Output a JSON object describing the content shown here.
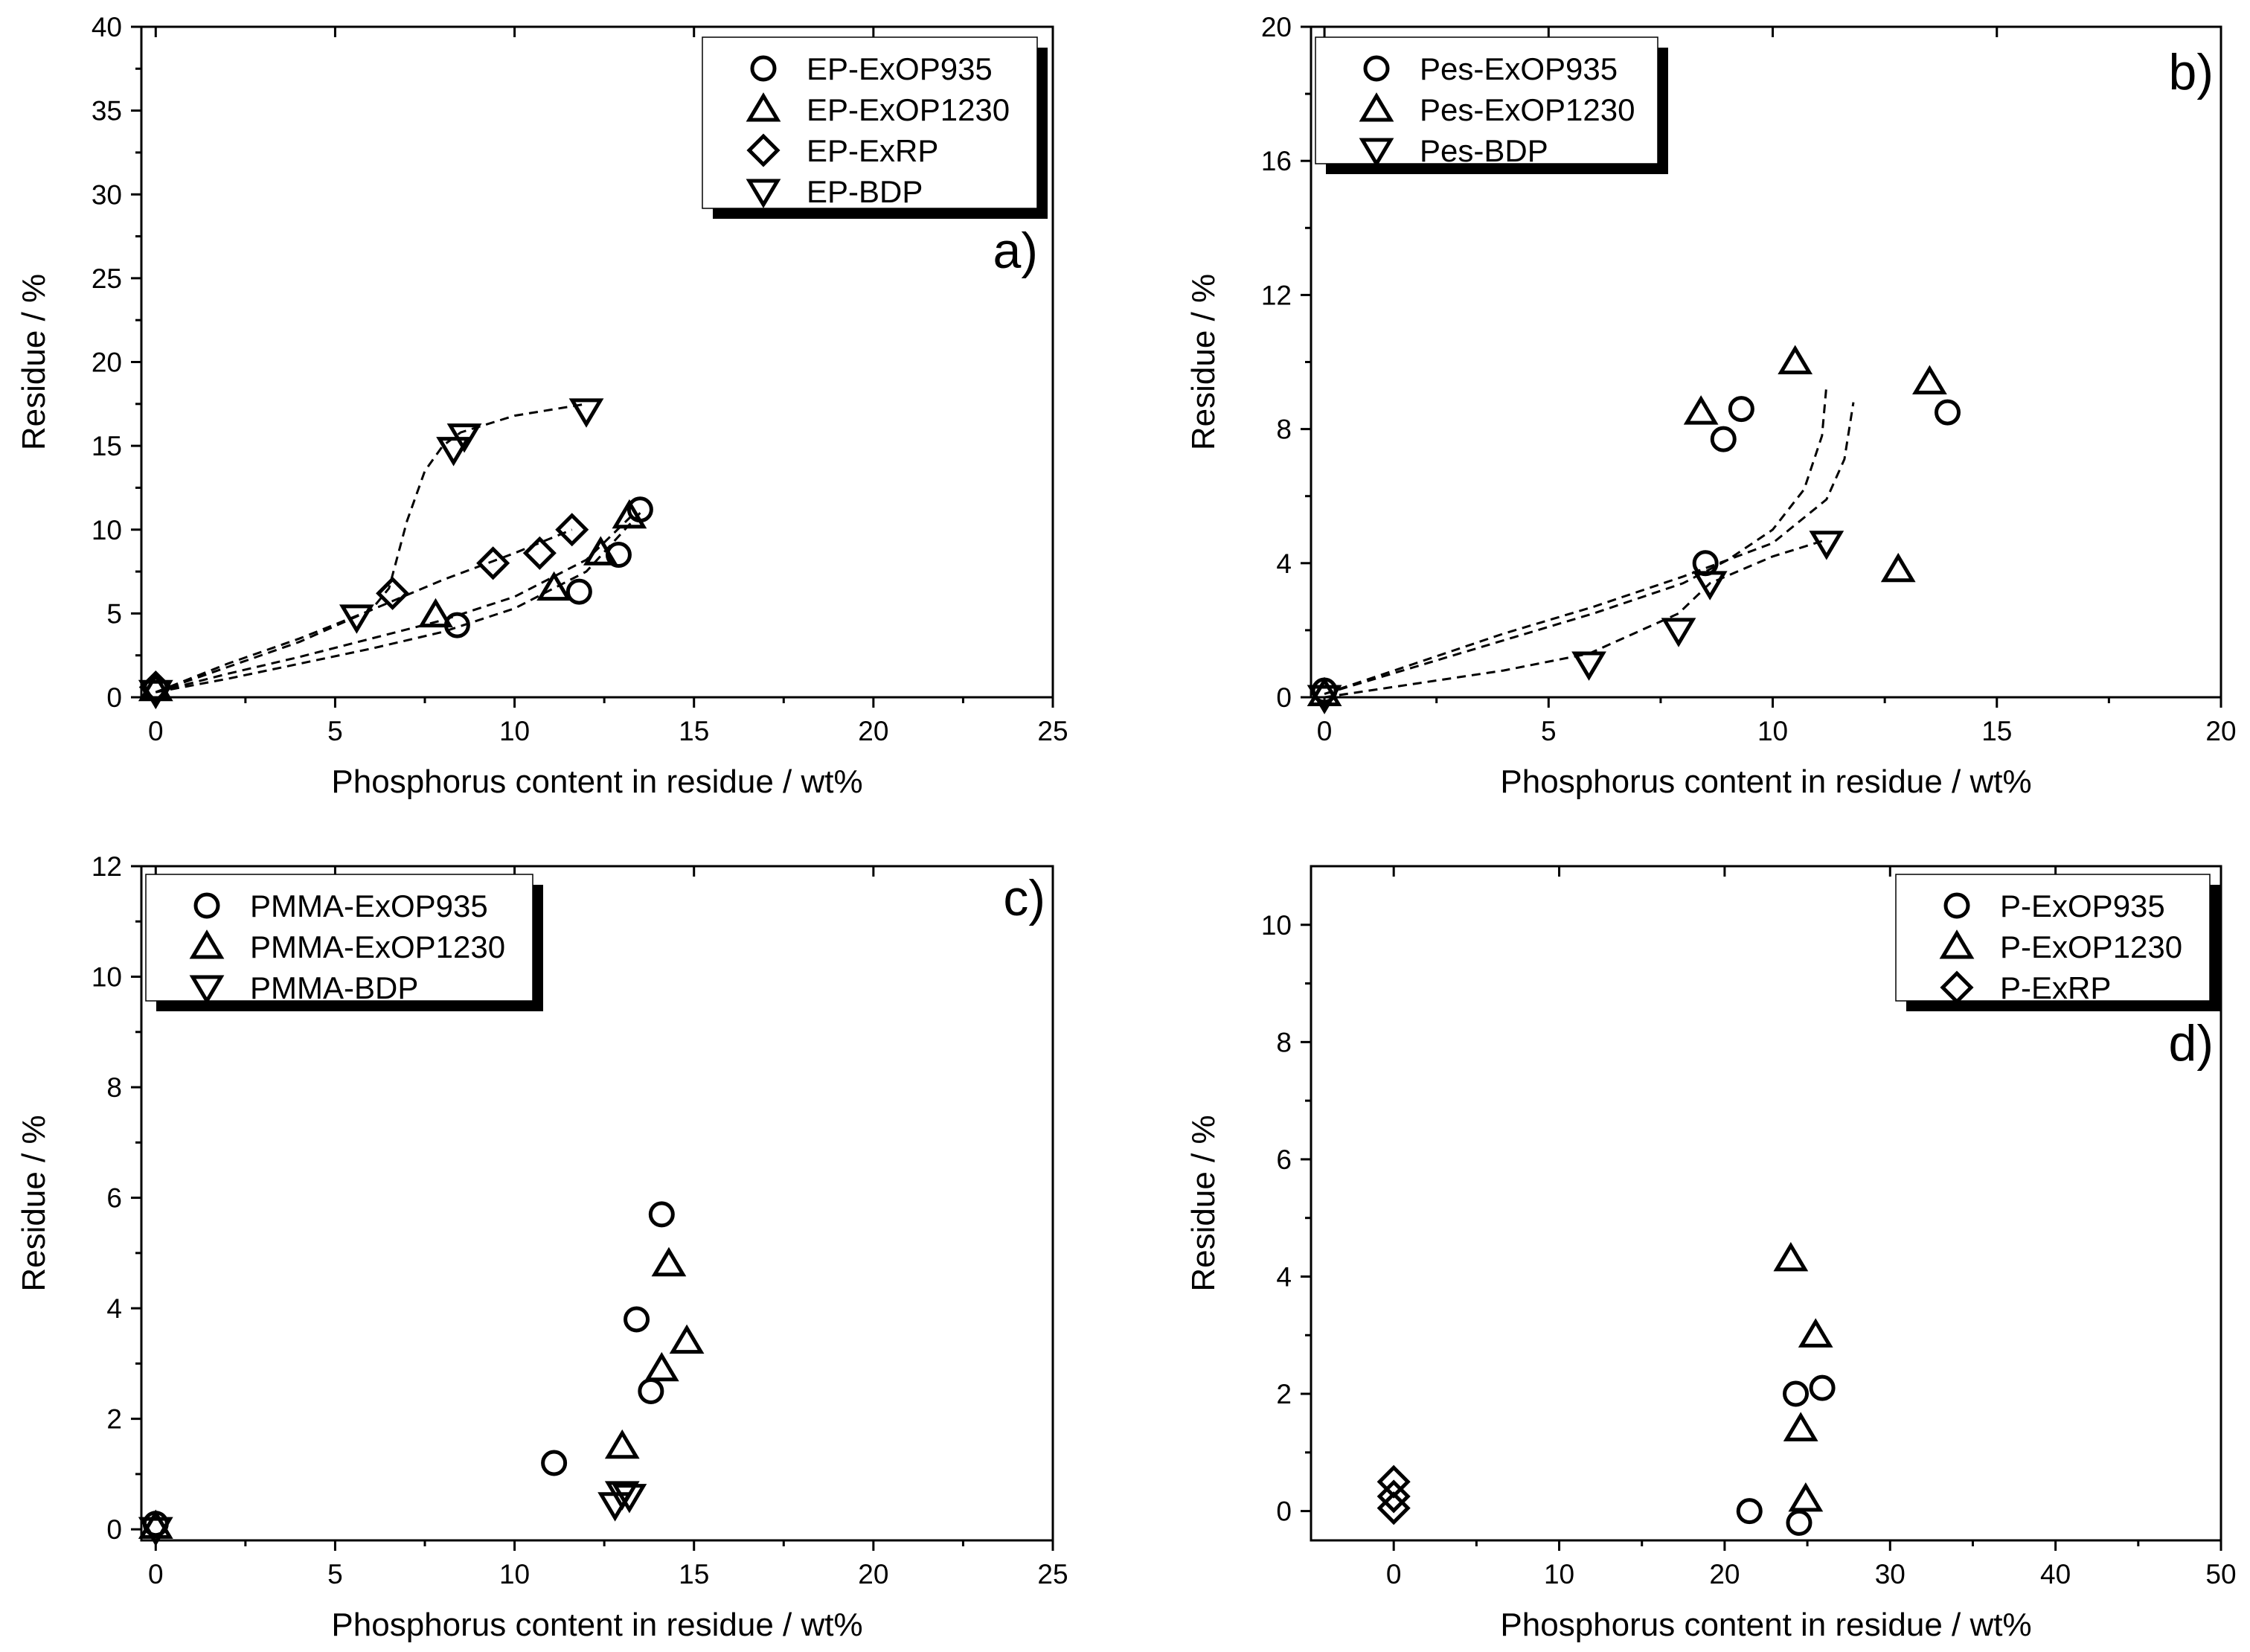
{
  "chart_data": [
    {
      "panel": "a)",
      "type": "scatter",
      "xlabel": "Phosphorus content in residue  /  wt%",
      "ylabel": "Residue  /  %",
      "xlim": [
        -0.4,
        25
      ],
      "ylim": [
        0,
        40
      ],
      "xticks": [
        0,
        5,
        10,
        15,
        20,
        25
      ],
      "yticks": [
        0,
        5,
        10,
        15,
        20,
        25,
        30,
        35,
        40
      ],
      "legend_position": "top-right",
      "series": [
        {
          "name": "EP-ExOP935",
          "marker": "circle",
          "x": [
            0,
            8.4,
            11.8,
            12.9,
            13.5
          ],
          "y": [
            0.5,
            4.3,
            6.3,
            8.5,
            11.2
          ]
        },
        {
          "name": "EP-ExOP1230",
          "marker": "triangle-up",
          "x": [
            0,
            7.8,
            11.1,
            12.4,
            13.2
          ],
          "y": [
            0.5,
            4.9,
            6.5,
            8.6,
            10.8
          ]
        },
        {
          "name": "EP-ExRP",
          "marker": "diamond",
          "x": [
            0,
            6.6,
            9.4,
            10.7,
            11.6
          ],
          "y": [
            0.6,
            6.2,
            8.0,
            8.6,
            10.0
          ]
        },
        {
          "name": "EP-BDP",
          "marker": "triangle-down",
          "x": [
            0,
            5.6,
            8.3,
            8.6,
            12.0
          ],
          "y": [
            0.3,
            4.8,
            14.8,
            15.6,
            17.1
          ]
        }
      ],
      "fit_curves": [
        {
          "x": [
            0,
            2,
            4,
            6,
            6.5,
            7,
            7.5,
            8,
            8.5,
            10,
            12
          ],
          "y": [
            0.3,
            1.8,
            3.3,
            5.2,
            6.5,
            10.5,
            13.5,
            15.0,
            15.8,
            16.8,
            17.5
          ]
        },
        {
          "x": [
            0,
            2,
            4,
            6,
            8,
            10,
            11.6
          ],
          "y": [
            0.3,
            2.0,
            3.5,
            5.2,
            7.0,
            8.6,
            10.0
          ]
        },
        {
          "x": [
            0,
            2,
            4,
            6,
            8,
            10,
            12,
            13.3
          ],
          "y": [
            0.3,
            1.4,
            2.4,
            3.5,
            4.6,
            6.0,
            8.2,
            10.9
          ]
        },
        {
          "x": [
            0,
            2,
            4,
            6,
            8,
            10,
            12,
            13.5
          ],
          "y": [
            0.3,
            1.1,
            2.0,
            2.9,
            3.9,
            5.3,
            7.5,
            11.0
          ]
        }
      ]
    },
    {
      "panel": "b)",
      "type": "scatter",
      "xlabel": "Phosphorus content in residue  /  wt%",
      "ylabel": "Residue  /  %",
      "xlim": [
        -0.3,
        20
      ],
      "ylim": [
        0,
        20
      ],
      "xticks": [
        0,
        5,
        10,
        15,
        20
      ],
      "yticks": [
        0,
        4,
        8,
        12,
        16,
        20
      ],
      "legend_position": "top-left",
      "series": [
        {
          "name": "Pes-ExOP935",
          "marker": "circle",
          "x": [
            0,
            8.5,
            8.9,
            9.3,
            13.9
          ],
          "y": [
            0.2,
            4.0,
            7.7,
            8.6,
            8.5
          ]
        },
        {
          "name": "Pes-ExOP1230",
          "marker": "triangle-up",
          "x": [
            0,
            8.4,
            10.5,
            12.8,
            13.5
          ],
          "y": [
            0.1,
            8.5,
            10.0,
            3.8,
            9.4
          ]
        },
        {
          "name": "Pes-BDP",
          "marker": "triangle-down",
          "x": [
            0,
            5.9,
            7.9,
            8.6,
            11.2
          ],
          "y": [
            0,
            1.0,
            2.0,
            3.4,
            4.6
          ]
        }
      ],
      "fit_curves": [
        {
          "x": [
            0,
            2,
            4,
            6,
            8,
            9,
            10,
            10.7,
            11.1,
            11.2
          ],
          "y": [
            0.1,
            0.9,
            1.7,
            2.5,
            3.4,
            4.1,
            5.0,
            6.2,
            7.8,
            9.3
          ]
        },
        {
          "x": [
            0,
            2,
            4,
            6,
            8,
            10,
            11.2,
            11.6,
            11.8
          ],
          "y": [
            0.1,
            1.0,
            1.9,
            2.7,
            3.6,
            4.6,
            5.9,
            7.1,
            8.8
          ]
        },
        {
          "x": [
            0,
            2,
            4,
            5.9,
            7.9,
            8.6,
            10,
            11.2
          ],
          "y": [
            0,
            0.4,
            0.8,
            1.3,
            2.5,
            3.4,
            4.2,
            4.7
          ]
        }
      ]
    },
    {
      "panel": "c)",
      "type": "scatter",
      "xlabel": "Phosphorus content in residue  /  wt%",
      "ylabel": "Residue  /  %",
      "xlim": [
        -0.4,
        25
      ],
      "ylim": [
        -0.2,
        12
      ],
      "xticks": [
        0,
        5,
        10,
        15,
        20,
        25
      ],
      "yticks": [
        0,
        2,
        4,
        6,
        8,
        10,
        12
      ],
      "legend_position": "top-left",
      "series": [
        {
          "name": "PMMA-ExOP935",
          "marker": "circle",
          "x": [
            0,
            11.1,
            13.4,
            13.8,
            14.1
          ],
          "y": [
            0.1,
            1.2,
            3.8,
            2.5,
            5.7
          ]
        },
        {
          "name": "PMMA-ExOP1230",
          "marker": "triangle-up",
          "x": [
            0,
            13.0,
            14.1,
            14.3,
            14.8
          ],
          "y": [
            0.05,
            1.5,
            2.9,
            4.8,
            3.4
          ]
        },
        {
          "name": "PMMA-BDP",
          "marker": "triangle-down",
          "x": [
            0,
            12.8,
            13.0,
            13.2
          ],
          "y": [
            0,
            0.45,
            0.65,
            0.6
          ]
        }
      ]
    },
    {
      "panel": "d)",
      "type": "scatter",
      "xlabel": "Phosphorus content in residue  /  wt%",
      "ylabel": "Residue  /  %",
      "xlim": [
        -5,
        50
      ],
      "ylim": [
        -0.5,
        11
      ],
      "xticks": [
        0,
        10,
        20,
        30,
        40,
        50
      ],
      "yticks": [
        0,
        2,
        4,
        6,
        8,
        10
      ],
      "legend_position": "top-right",
      "series": [
        {
          "name": "P-ExOP935",
          "marker": "circle",
          "x": [
            21.5,
            24.3,
            24.5,
            25.9
          ],
          "y": [
            0,
            2.0,
            -0.2,
            2.1
          ]
        },
        {
          "name": "P-ExOP1230",
          "marker": "triangle-up",
          "x": [
            24.0,
            24.6,
            24.9,
            25.5
          ],
          "y": [
            4.3,
            1.4,
            0.2,
            3.0
          ]
        },
        {
          "name": "P-ExRP",
          "marker": "diamond",
          "x": [
            0,
            0,
            0
          ],
          "y": [
            0.5,
            0.25,
            0.05
          ]
        }
      ]
    }
  ]
}
